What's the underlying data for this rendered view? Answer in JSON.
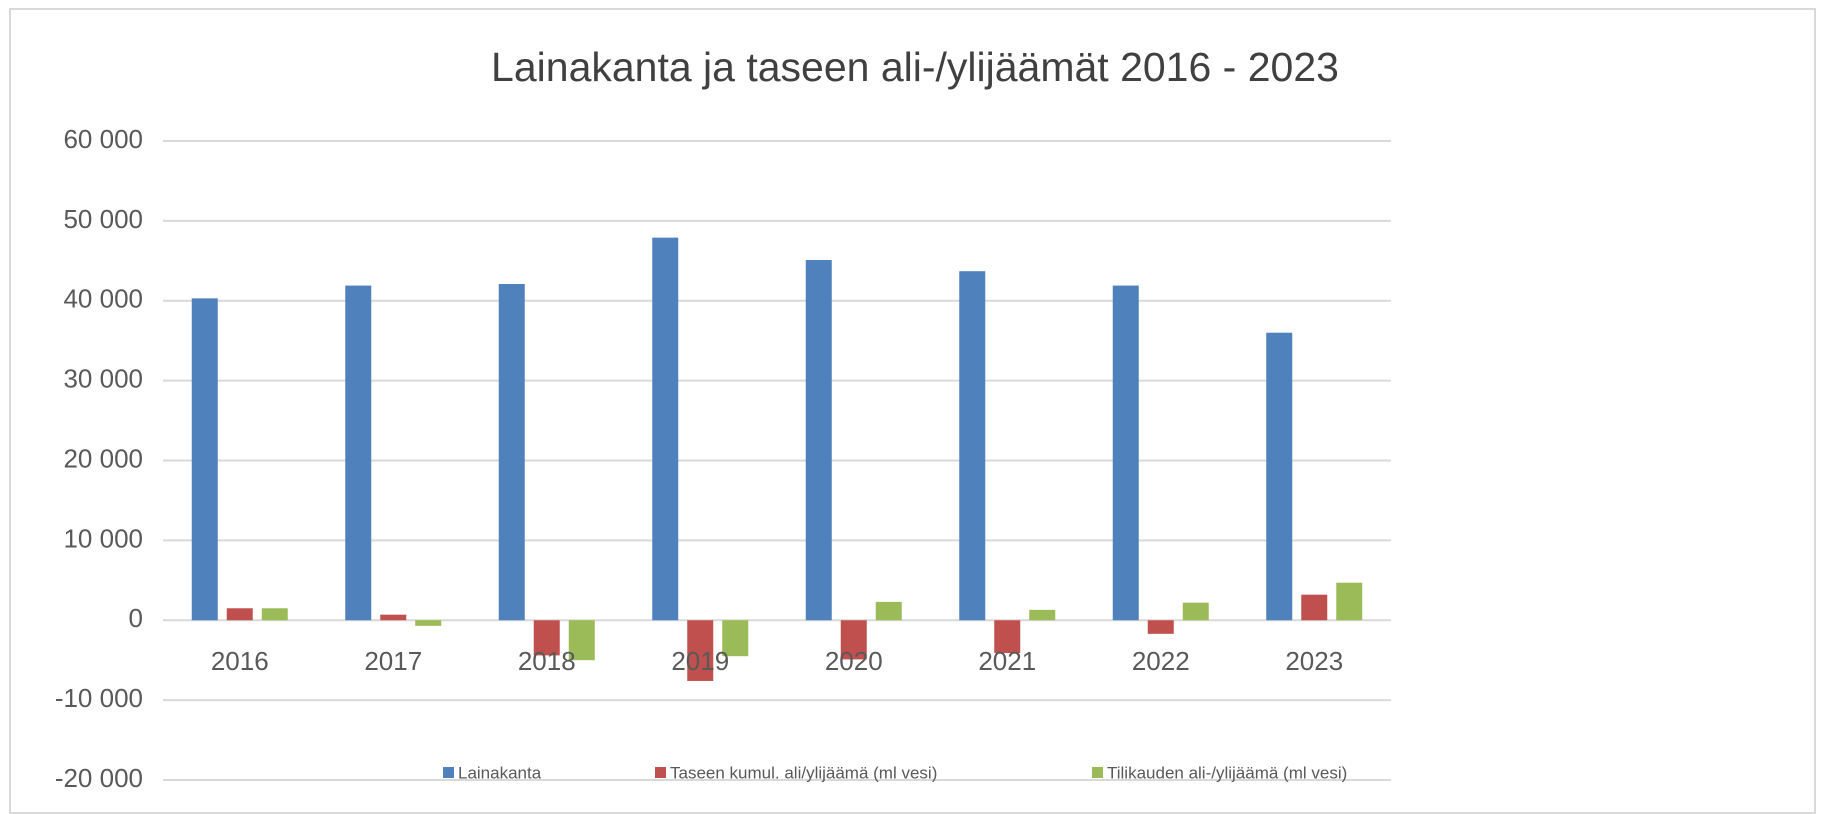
{
  "chart_data": {
    "type": "bar",
    "title": "Lainakanta ja taseen ali-/ylijäämät 2016 - 2023",
    "categories": [
      "2016",
      "2017",
      "2018",
      "2019",
      "2020",
      "2021",
      "2022",
      "2023"
    ],
    "series": [
      {
        "name": "Lainakanta",
        "color": "#4f81bd",
        "values": [
          40300,
          41900,
          42100,
          47900,
          45100,
          43700,
          41900,
          36000
        ]
      },
      {
        "name": "Taseen kumul. ali/ylijäämä (ml vesi)",
        "color": "#c0504d",
        "values": [
          1500,
          700,
          -4400,
          -7600,
          -4900,
          -4100,
          -1700,
          3200
        ]
      },
      {
        "name": "Tilikauden ali-/ylijäämä (ml vesi)",
        "color": "#9bbb59",
        "values": [
          1500,
          -700,
          -5000,
          -4500,
          2300,
          1300,
          2200,
          4700
        ]
      }
    ],
    "ylim": [
      -20000,
      60000
    ],
    "yticks": [
      {
        "value": -20000,
        "label": "-20 000"
      },
      {
        "value": -10000,
        "label": "-10 000"
      },
      0,
      {
        "value": 10000,
        "label": "10 000"
      },
      {
        "value": 20000,
        "label": "20 000"
      },
      {
        "value": 30000,
        "label": "30 000"
      },
      {
        "value": 40000,
        "label": "40 000"
      },
      {
        "value": 50000,
        "label": "50 000"
      },
      {
        "value": 60000,
        "label": "60 000"
      }
    ],
    "grid": true,
    "legend": "bottom"
  }
}
